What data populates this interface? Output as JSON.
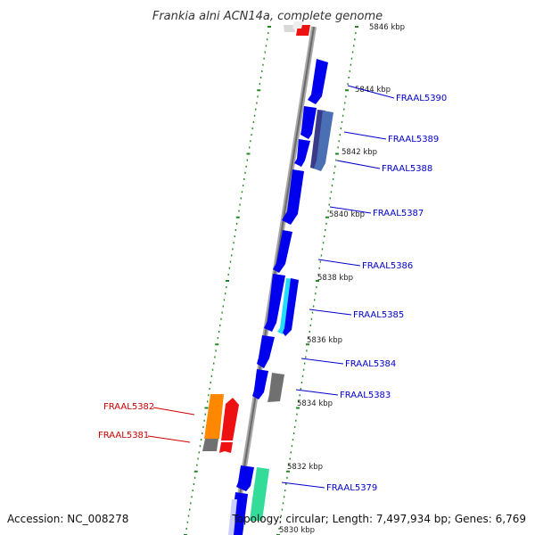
{
  "title": "Frankia alni ACN14a, complete genome",
  "footer": {
    "accession": "Accession: NC_008278",
    "summary": "Topology: circular; Length: 7,497,934 bp; Genes: 6,769"
  },
  "colors": {
    "forward_label": "#0000cc",
    "reverse_label": "#cc0000",
    "tick": "#228822",
    "backbone": "#888888"
  },
  "kbp_labels": [
    "5846 kbp",
    "5844 kbp",
    "5842 kbp",
    "5840 kbp",
    "5838 kbp",
    "5836 kbp",
    "5834 kbp",
    "5832 kbp",
    "5830 kbp"
  ],
  "gene_labels": [
    "FRAAL5390",
    "FRAAL5389",
    "FRAAL5388",
    "FRAAL5387",
    "FRAAL5386",
    "FRAAL5385",
    "FRAAL5384",
    "FRAAL5383",
    "FRAAL5382",
    "FRAAL5381",
    "FRAAL5379"
  ]
}
